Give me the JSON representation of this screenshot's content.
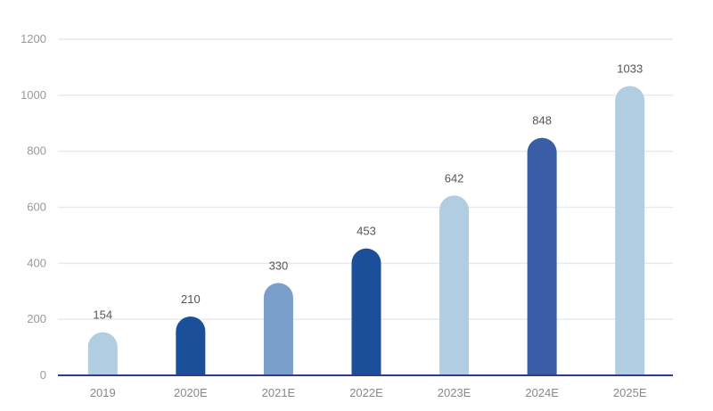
{
  "chart_data": {
    "type": "bar",
    "categories": [
      "2019",
      "2020E",
      "2021E",
      "2022E",
      "2023E",
      "2024E",
      "2025E"
    ],
    "values": [
      154,
      210,
      330,
      453,
      642,
      848,
      1033
    ],
    "colors": [
      "#b1cde2",
      "#1b4f9a",
      "#7a9fcb",
      "#1b4f9a",
      "#b1cde2",
      "#3a5ea5",
      "#b1cde2"
    ],
    "yticks": [
      0,
      200,
      400,
      600,
      800,
      1000,
      1200
    ],
    "ylim": [
      0,
      1200
    ],
    "grid": true,
    "axis_color": "#2b3f8c",
    "grid_color": "#e6eaf3",
    "title": "",
    "xlabel": "",
    "ylabel": ""
  }
}
